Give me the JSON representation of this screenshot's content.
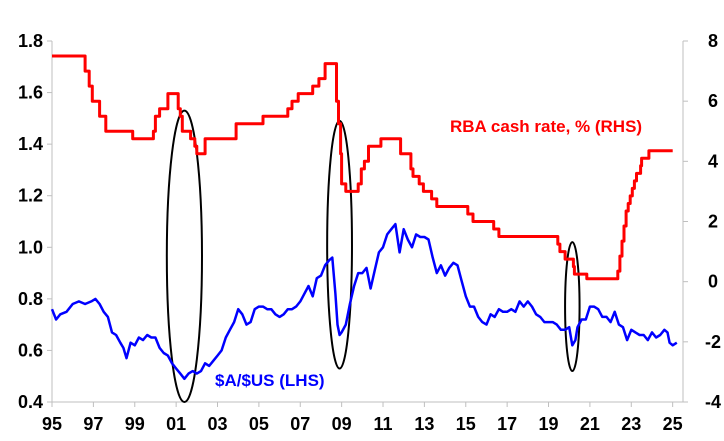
{
  "chart_data": {
    "type": "line",
    "grid": false,
    "legend": "none",
    "x_axis": {
      "range": [
        1995,
        2025.5
      ],
      "tick_values": [
        1995,
        1997,
        1999,
        2001,
        2003,
        2005,
        2007,
        2009,
        2011,
        2013,
        2015,
        2017,
        2019,
        2021,
        2023,
        2025
      ],
      "tick_labels": [
        "95",
        "97",
        "99",
        "01",
        "03",
        "05",
        "07",
        "09",
        "11",
        "13",
        "15",
        "17",
        "19",
        "21",
        "23",
        "25"
      ]
    },
    "y_left": {
      "range": [
        0.4,
        1.8
      ],
      "ticks": [
        0.4,
        0.6,
        0.8,
        1.0,
        1.2,
        1.4,
        1.6,
        1.8
      ],
      "tick_labels": [
        "0.4",
        "0.6",
        "0.8",
        "1.0",
        "1.2",
        "1.4",
        "1.6",
        "1.8"
      ]
    },
    "y_right": {
      "range": [
        -4,
        8
      ],
      "ticks": [
        -4,
        -2,
        0,
        2,
        4,
        6,
        8
      ],
      "tick_labels": [
        "-4",
        "-2",
        "0",
        "2",
        "4",
        "6",
        "8"
      ]
    },
    "series": [
      {
        "name": "RBA cash rate, % (RHS)",
        "axis": "right",
        "color": "#ff0000",
        "step": true,
        "points": [
          [
            1995.0,
            7.5
          ],
          [
            1996.6,
            7.0
          ],
          [
            1996.8,
            6.5
          ],
          [
            1996.95,
            6.0
          ],
          [
            1997.3,
            5.5
          ],
          [
            1997.6,
            5.0
          ],
          [
            1998.9,
            4.75
          ],
          [
            1999.9,
            5.0
          ],
          [
            2000.0,
            5.5
          ],
          [
            2000.2,
            5.75
          ],
          [
            2000.6,
            6.25
          ],
          [
            2001.1,
            5.75
          ],
          [
            2001.2,
            5.5
          ],
          [
            2001.3,
            5.0
          ],
          [
            2001.7,
            4.75
          ],
          [
            2001.9,
            4.5
          ],
          [
            2002.0,
            4.25
          ],
          [
            2002.4,
            4.75
          ],
          [
            2003.9,
            5.25
          ],
          [
            2005.2,
            5.5
          ],
          [
            2006.4,
            5.75
          ],
          [
            2006.6,
            6.0
          ],
          [
            2006.9,
            6.25
          ],
          [
            2007.6,
            6.5
          ],
          [
            2007.9,
            6.75
          ],
          [
            2008.2,
            7.25
          ],
          [
            2008.75,
            6.0
          ],
          [
            2008.85,
            5.25
          ],
          [
            2008.95,
            4.25
          ],
          [
            2009.0,
            3.25
          ],
          [
            2009.2,
            3.0
          ],
          [
            2009.8,
            3.25
          ],
          [
            2009.95,
            3.75
          ],
          [
            2010.1,
            4.0
          ],
          [
            2010.3,
            4.5
          ],
          [
            2010.9,
            4.75
          ],
          [
            2011.85,
            4.25
          ],
          [
            2012.35,
            3.75
          ],
          [
            2012.45,
            3.5
          ],
          [
            2012.75,
            3.25
          ],
          [
            2012.95,
            3.0
          ],
          [
            2013.35,
            2.75
          ],
          [
            2013.6,
            2.5
          ],
          [
            2015.1,
            2.25
          ],
          [
            2015.35,
            2.0
          ],
          [
            2016.35,
            1.75
          ],
          [
            2016.6,
            1.5
          ],
          [
            2019.45,
            1.25
          ],
          [
            2019.55,
            1.0
          ],
          [
            2019.8,
            0.75
          ],
          [
            2020.2,
            0.5
          ],
          [
            2020.25,
            0.25
          ],
          [
            2020.85,
            0.1
          ],
          [
            2022.35,
            0.35
          ],
          [
            2022.45,
            0.85
          ],
          [
            2022.55,
            1.35
          ],
          [
            2022.65,
            1.85
          ],
          [
            2022.75,
            2.35
          ],
          [
            2022.85,
            2.6
          ],
          [
            2022.95,
            2.85
          ],
          [
            2023.05,
            3.1
          ],
          [
            2023.15,
            3.35
          ],
          [
            2023.25,
            3.6
          ],
          [
            2023.45,
            3.85
          ],
          [
            2023.5,
            4.1
          ],
          [
            2023.85,
            4.35
          ],
          [
            2025.0,
            4.35
          ]
        ]
      },
      {
        "name": "$A/$US (LHS)",
        "axis": "left",
        "color": "#0000ff",
        "step": false,
        "points": [
          [
            1995.0,
            0.76
          ],
          [
            1995.2,
            0.72
          ],
          [
            1995.4,
            0.74
          ],
          [
            1995.7,
            0.75
          ],
          [
            1996.0,
            0.78
          ],
          [
            1996.3,
            0.79
          ],
          [
            1996.6,
            0.78
          ],
          [
            1996.9,
            0.79
          ],
          [
            1997.1,
            0.8
          ],
          [
            1997.3,
            0.78
          ],
          [
            1997.5,
            0.75
          ],
          [
            1997.7,
            0.73
          ],
          [
            1997.9,
            0.67
          ],
          [
            1998.1,
            0.66
          ],
          [
            1998.3,
            0.63
          ],
          [
            1998.45,
            0.61
          ],
          [
            1998.6,
            0.57
          ],
          [
            1998.8,
            0.63
          ],
          [
            1999.0,
            0.62
          ],
          [
            1999.2,
            0.65
          ],
          [
            1999.4,
            0.64
          ],
          [
            1999.6,
            0.66
          ],
          [
            1999.8,
            0.65
          ],
          [
            2000.0,
            0.65
          ],
          [
            2000.2,
            0.61
          ],
          [
            2000.4,
            0.59
          ],
          [
            2000.6,
            0.58
          ],
          [
            2000.8,
            0.55
          ],
          [
            2001.0,
            0.53
          ],
          [
            2001.2,
            0.51
          ],
          [
            2001.4,
            0.49
          ],
          [
            2001.6,
            0.51
          ],
          [
            2001.8,
            0.52
          ],
          [
            2002.0,
            0.51
          ],
          [
            2002.2,
            0.52
          ],
          [
            2002.4,
            0.55
          ],
          [
            2002.6,
            0.54
          ],
          [
            2002.8,
            0.56
          ],
          [
            2003.0,
            0.58
          ],
          [
            2003.2,
            0.6
          ],
          [
            2003.4,
            0.65
          ],
          [
            2003.6,
            0.68
          ],
          [
            2003.8,
            0.71
          ],
          [
            2004.0,
            0.76
          ],
          [
            2004.2,
            0.74
          ],
          [
            2004.4,
            0.7
          ],
          [
            2004.6,
            0.71
          ],
          [
            2004.8,
            0.76
          ],
          [
            2005.0,
            0.77
          ],
          [
            2005.2,
            0.77
          ],
          [
            2005.4,
            0.76
          ],
          [
            2005.6,
            0.76
          ],
          [
            2005.8,
            0.74
          ],
          [
            2006.0,
            0.73
          ],
          [
            2006.2,
            0.74
          ],
          [
            2006.4,
            0.76
          ],
          [
            2006.6,
            0.76
          ],
          [
            2006.8,
            0.77
          ],
          [
            2007.0,
            0.79
          ],
          [
            2007.2,
            0.82
          ],
          [
            2007.4,
            0.85
          ],
          [
            2007.6,
            0.81
          ],
          [
            2007.8,
            0.88
          ],
          [
            2008.0,
            0.89
          ],
          [
            2008.2,
            0.93
          ],
          [
            2008.4,
            0.95
          ],
          [
            2008.55,
            0.96
          ],
          [
            2008.7,
            0.82
          ],
          [
            2008.8,
            0.7
          ],
          [
            2008.9,
            0.66
          ],
          [
            2009.0,
            0.67
          ],
          [
            2009.2,
            0.7
          ],
          [
            2009.4,
            0.78
          ],
          [
            2009.6,
            0.85
          ],
          [
            2009.8,
            0.9
          ],
          [
            2010.0,
            0.9
          ],
          [
            2010.2,
            0.92
          ],
          [
            2010.4,
            0.84
          ],
          [
            2010.6,
            0.91
          ],
          [
            2010.8,
            0.98
          ],
          [
            2011.0,
            1.0
          ],
          [
            2011.2,
            1.05
          ],
          [
            2011.4,
            1.07
          ],
          [
            2011.6,
            1.09
          ],
          [
            2011.8,
            0.98
          ],
          [
            2012.0,
            1.07
          ],
          [
            2012.2,
            1.03
          ],
          [
            2012.4,
            1.0
          ],
          [
            2012.6,
            1.05
          ],
          [
            2012.8,
            1.04
          ],
          [
            2013.0,
            1.04
          ],
          [
            2013.2,
            1.03
          ],
          [
            2013.4,
            0.96
          ],
          [
            2013.6,
            0.9
          ],
          [
            2013.8,
            0.93
          ],
          [
            2014.0,
            0.89
          ],
          [
            2014.2,
            0.92
          ],
          [
            2014.4,
            0.94
          ],
          [
            2014.6,
            0.93
          ],
          [
            2014.8,
            0.87
          ],
          [
            2015.0,
            0.81
          ],
          [
            2015.2,
            0.77
          ],
          [
            2015.4,
            0.77
          ],
          [
            2015.6,
            0.73
          ],
          [
            2015.8,
            0.71
          ],
          [
            2016.0,
            0.7
          ],
          [
            2016.2,
            0.74
          ],
          [
            2016.4,
            0.73
          ],
          [
            2016.6,
            0.76
          ],
          [
            2016.8,
            0.75
          ],
          [
            2017.0,
            0.75
          ],
          [
            2017.2,
            0.76
          ],
          [
            2017.4,
            0.75
          ],
          [
            2017.6,
            0.79
          ],
          [
            2017.8,
            0.77
          ],
          [
            2018.0,
            0.79
          ],
          [
            2018.2,
            0.77
          ],
          [
            2018.4,
            0.74
          ],
          [
            2018.6,
            0.73
          ],
          [
            2018.8,
            0.71
          ],
          [
            2019.0,
            0.71
          ],
          [
            2019.2,
            0.71
          ],
          [
            2019.4,
            0.7
          ],
          [
            2019.6,
            0.68
          ],
          [
            2019.8,
            0.68
          ],
          [
            2020.0,
            0.69
          ],
          [
            2020.15,
            0.62
          ],
          [
            2020.3,
            0.64
          ],
          [
            2020.4,
            0.69
          ],
          [
            2020.6,
            0.72
          ],
          [
            2020.8,
            0.72
          ],
          [
            2021.0,
            0.77
          ],
          [
            2021.2,
            0.77
          ],
          [
            2021.4,
            0.76
          ],
          [
            2021.6,
            0.73
          ],
          [
            2021.8,
            0.73
          ],
          [
            2022.0,
            0.71
          ],
          [
            2022.2,
            0.75
          ],
          [
            2022.4,
            0.7
          ],
          [
            2022.6,
            0.69
          ],
          [
            2022.8,
            0.64
          ],
          [
            2023.0,
            0.68
          ],
          [
            2023.2,
            0.67
          ],
          [
            2023.4,
            0.66
          ],
          [
            2023.6,
            0.66
          ],
          [
            2023.8,
            0.64
          ],
          [
            2024.0,
            0.67
          ],
          [
            2024.2,
            0.65
          ],
          [
            2024.4,
            0.66
          ],
          [
            2024.6,
            0.68
          ],
          [
            2024.75,
            0.67
          ],
          [
            2024.85,
            0.63
          ],
          [
            2025.0,
            0.62
          ],
          [
            2025.2,
            0.63
          ]
        ]
      }
    ],
    "annotations": [
      {
        "type": "ellipse",
        "x_center": 2001.4,
        "x_halfwidth": 0.85,
        "y_top": 1.53,
        "y_bottom": 0.4
      },
      {
        "type": "ellipse",
        "x_center": 2008.9,
        "x_halfwidth": 0.6,
        "y_top": 1.49,
        "y_bottom": 0.53
      },
      {
        "type": "ellipse",
        "x_center": 2020.15,
        "x_halfwidth": 0.35,
        "y_top": 1.02,
        "y_bottom": 0.52
      }
    ]
  }
}
